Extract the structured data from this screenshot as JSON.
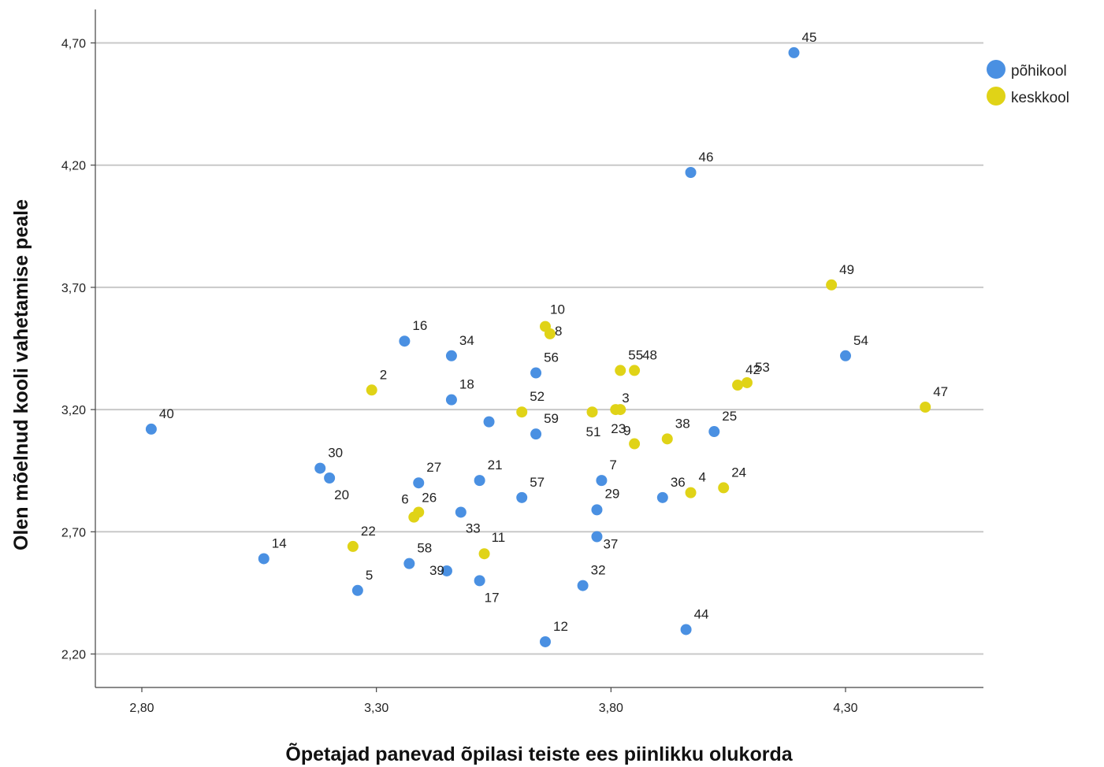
{
  "chart_data": {
    "type": "scatter",
    "xlabel": "Õpetajad panevad õpilasi teiste ees piinlikku olukorda",
    "ylabel": "Olen mõelnud kooli vahetamise peale",
    "xlim": [
      2.78,
      4.58
    ],
    "ylim": [
      2.07,
      4.84
    ],
    "x_ticks": [
      2.8,
      3.3,
      3.8,
      4.3
    ],
    "x_tick_labels": [
      "2,80",
      "3,30",
      "3,80",
      "4,30"
    ],
    "y_ticks": [
      2.2,
      2.7,
      3.2,
      3.7,
      4.2,
      4.7
    ],
    "y_tick_labels": [
      "2,20",
      "2,70",
      "3,20",
      "3,70",
      "4,20",
      "4,70"
    ],
    "grid": "horizontal",
    "legend_position": "top-right",
    "series": [
      {
        "name": "põhikool",
        "color": "#4a90e2",
        "points": [
          {
            "id": "45",
            "x": 4.19,
            "y": 4.66
          },
          {
            "id": "46",
            "x": 3.97,
            "y": 4.17
          },
          {
            "id": "54",
            "x": 4.3,
            "y": 3.42
          },
          {
            "id": "16",
            "x": 3.36,
            "y": 3.48
          },
          {
            "id": "34",
            "x": 3.46,
            "y": 3.42
          },
          {
            "id": "56",
            "x": 3.64,
            "y": 3.35
          },
          {
            "id": "18",
            "x": 3.46,
            "y": 3.24
          },
          {
            "id": "40",
            "x": 2.82,
            "y": 3.12
          },
          {
            "id": "25",
            "x": 4.02,
            "y": 3.11
          },
          {
            "id": "30",
            "x": 3.18,
            "y": 2.96
          },
          {
            "id": "20",
            "x": 3.2,
            "y": 2.92
          },
          {
            "id": "27",
            "x": 3.39,
            "y": 2.9
          },
          {
            "id": "21",
            "x": 3.52,
            "y": 2.91
          },
          {
            "id": "7",
            "x": 3.78,
            "y": 2.91
          },
          {
            "id": "57",
            "x": 3.61,
            "y": 2.84
          },
          {
            "id": "36",
            "x": 3.91,
            "y": 2.84
          },
          {
            "id": "29",
            "x": 3.77,
            "y": 2.79
          },
          {
            "id": "33",
            "x": 3.48,
            "y": 2.78
          },
          {
            "id": "37",
            "x": 3.77,
            "y": 2.68
          },
          {
            "id": "14",
            "x": 3.06,
            "y": 2.59
          },
          {
            "id": "58",
            "x": 3.37,
            "y": 2.57
          },
          {
            "id": "39",
            "x": 3.45,
            "y": 2.54
          },
          {
            "id": "17",
            "x": 3.52,
            "y": 2.5
          },
          {
            "id": "32",
            "x": 3.74,
            "y": 2.48
          },
          {
            "id": "5",
            "x": 3.26,
            "y": 2.46
          },
          {
            "id": "44",
            "x": 3.96,
            "y": 2.3
          },
          {
            "id": "12",
            "x": 3.66,
            "y": 2.25
          },
          {
            "id": "59",
            "x": 3.64,
            "y": 3.1
          },
          {
            "id": "",
            "x": 3.54,
            "y": 3.15
          }
        ]
      },
      {
        "name": "keskkool",
        "color": "#e0d317",
        "points": [
          {
            "id": "49",
            "x": 4.27,
            "y": 3.71
          },
          {
            "id": "10",
            "x": 3.66,
            "y": 3.54
          },
          {
            "id": "8",
            "x": 3.67,
            "y": 3.51
          },
          {
            "id": "55",
            "x": 3.82,
            "y": 3.36
          },
          {
            "id": "48",
            "x": 3.85,
            "y": 3.36
          },
          {
            "id": "53",
            "x": 4.09,
            "y": 3.31
          },
          {
            "id": "42",
            "x": 4.07,
            "y": 3.3
          },
          {
            "id": "2",
            "x": 3.29,
            "y": 3.28
          },
          {
            "id": "47",
            "x": 4.47,
            "y": 3.21
          },
          {
            "id": "52",
            "x": 3.61,
            "y": 3.19
          },
          {
            "id": "51",
            "x": 3.76,
            "y": 3.19
          },
          {
            "id": "3",
            "x": 3.81,
            "y": 3.2
          },
          {
            "id": "23",
            "x": 3.82,
            "y": 3.2
          },
          {
            "id": "9",
            "x": 3.85,
            "y": 3.06
          },
          {
            "id": "38",
            "x": 3.92,
            "y": 3.08
          },
          {
            "id": "4",
            "x": 3.97,
            "y": 2.86
          },
          {
            "id": "24",
            "x": 4.04,
            "y": 2.88
          },
          {
            "id": "6",
            "x": 3.38,
            "y": 2.76
          },
          {
            "id": "26",
            "x": 3.39,
            "y": 2.78
          },
          {
            "id": "22",
            "x": 3.25,
            "y": 2.64
          },
          {
            "id": "11",
            "x": 3.53,
            "y": 2.61
          }
        ]
      }
    ]
  }
}
